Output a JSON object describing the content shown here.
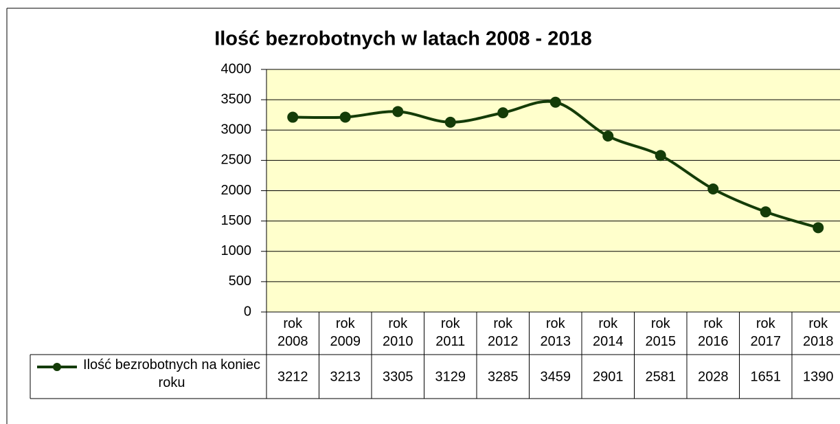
{
  "chart_data": {
    "type": "line",
    "title": "Ilość bezrobotnych w latach 2008 - 2018",
    "categories": [
      "rok 2008",
      "rok 2009",
      "rok 2010",
      "rok 2011",
      "rok 2012",
      "rok 2013",
      "rok 2014",
      "rok 2015",
      "rok 2016",
      "rok 2017",
      "rok 2018"
    ],
    "series": [
      {
        "name": "Ilość bezrobotnych na koniec roku",
        "color": "#143c08",
        "values": [
          3212,
          3213,
          3305,
          3129,
          3285,
          3459,
          2901,
          2581,
          2028,
          1651,
          1390
        ]
      }
    ],
    "ylim": [
      0,
      4000
    ],
    "yticks": [
      0,
      500,
      1000,
      1500,
      2000,
      2500,
      3000,
      3500,
      4000
    ],
    "grid": true,
    "plot_background": "#ffffcc"
  }
}
